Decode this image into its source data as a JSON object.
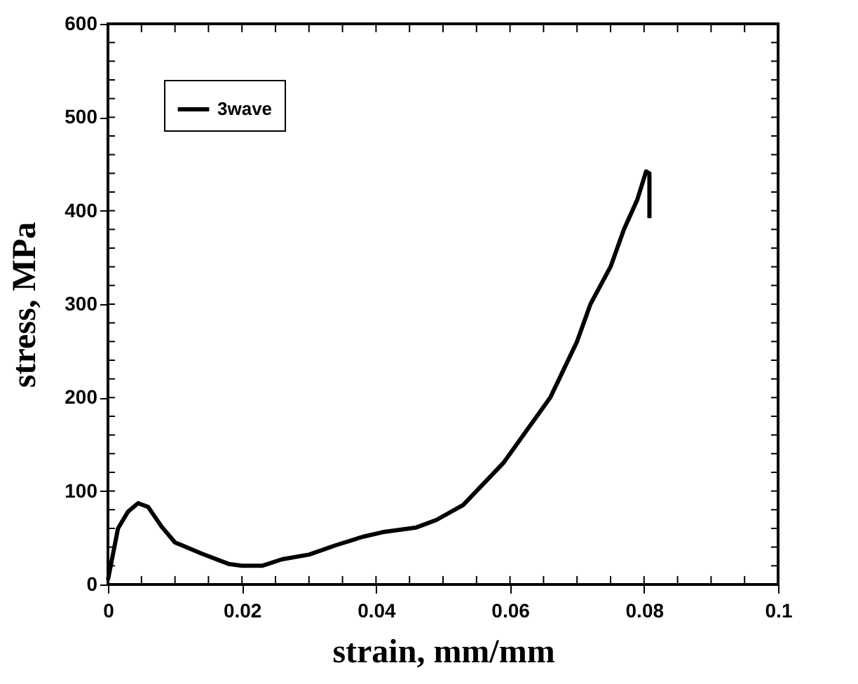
{
  "chart_data": {
    "type": "line",
    "xlabel": "strain, mm/mm",
    "ylabel": "stress, MPa",
    "xlim": [
      0,
      0.1
    ],
    "ylim": [
      0,
      600
    ],
    "xticks": [
      {
        "value": 0,
        "label": "0"
      },
      0.02,
      0.04,
      0.06,
      0.08,
      {
        "value": 0.1,
        "label": "0.1"
      }
    ],
    "yticks": [
      0,
      100,
      200,
      300,
      400,
      500,
      600
    ],
    "grid": false,
    "legend": "top left",
    "marker": "none",
    "line_style": "solid",
    "series": [
      {
        "name": "3wave",
        "color": "#000000",
        "x": [
          0,
          0.0015,
          0.003,
          0.0045,
          0.006,
          0.008,
          0.01,
          0.014,
          0.018,
          0.02,
          0.023,
          0.026,
          0.03,
          0.034,
          0.038,
          0.041,
          0.046,
          0.049,
          0.053,
          0.057,
          0.059,
          0.061,
          0.063,
          0.066,
          0.068,
          0.07,
          0.072,
          0.075,
          0.077,
          0.079,
          0.0803,
          0.0808,
          0.0808
        ],
        "values": [
          5,
          60,
          78,
          87,
          83,
          62,
          45,
          33,
          22,
          20,
          20,
          27,
          32,
          42,
          51,
          56,
          61,
          69,
          85,
          115,
          130,
          150,
          170,
          200,
          230,
          260,
          300,
          340,
          380,
          412,
          442,
          440,
          392
        ]
      }
    ]
  }
}
